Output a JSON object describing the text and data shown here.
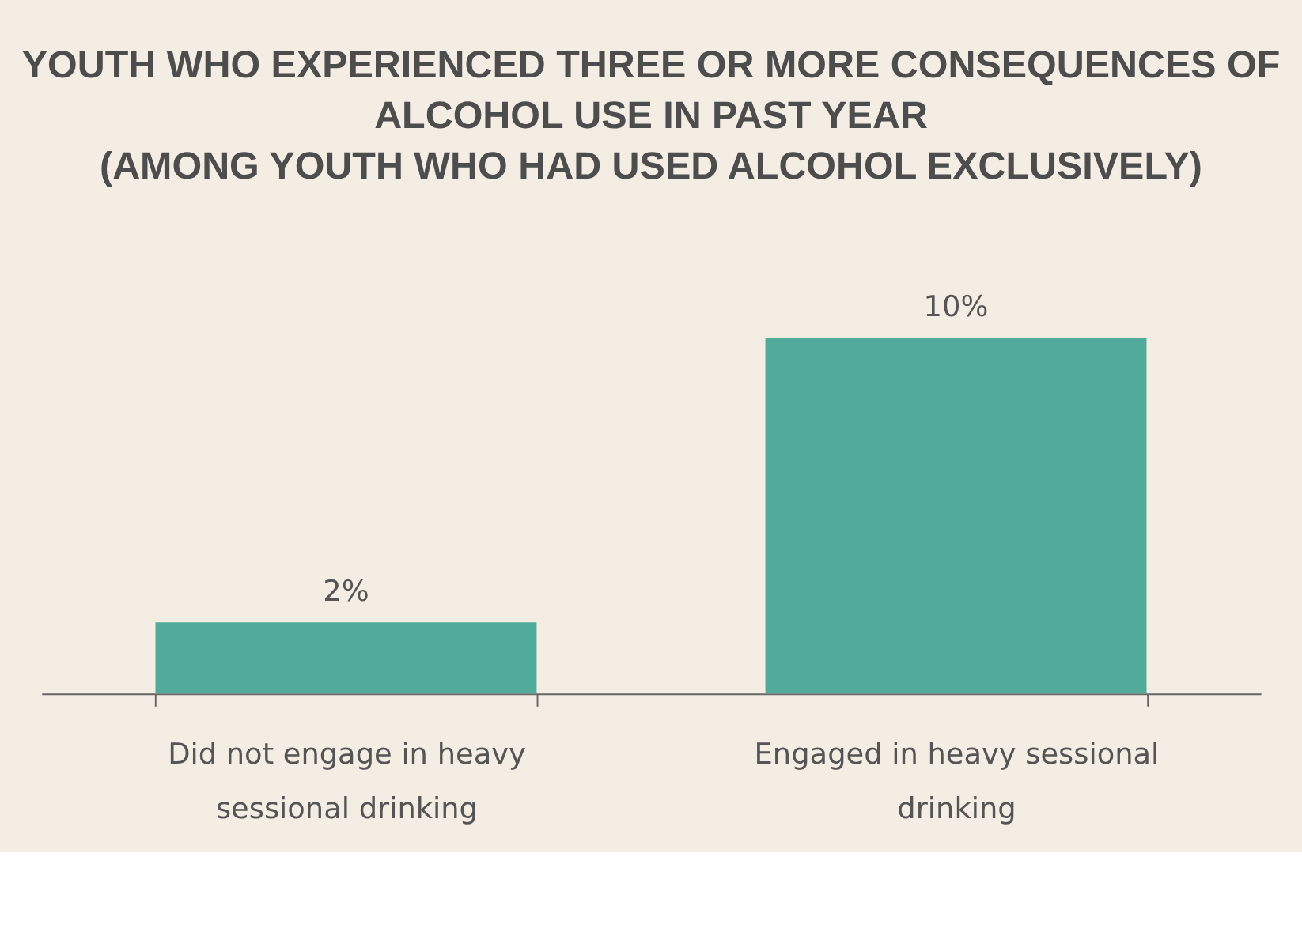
{
  "chart_data": {
    "type": "bar",
    "title": [
      "YOUTH WHO EXPERIENCED THREE OR MORE CONSEQUENCES OF",
      "ALCOHOL USE IN PAST YEAR",
      "(AMONG YOUTH WHO HAD USED ALCOHOL EXCLUSIVELY)"
    ],
    "categories": [
      "Did not engage in heavy sessional drinking",
      "Engaged in heavy sessional drinking"
    ],
    "values": [
      2,
      10
    ],
    "value_labels": [
      "2%",
      "10%"
    ],
    "color": "#52ab9a",
    "grid": false
  }
}
